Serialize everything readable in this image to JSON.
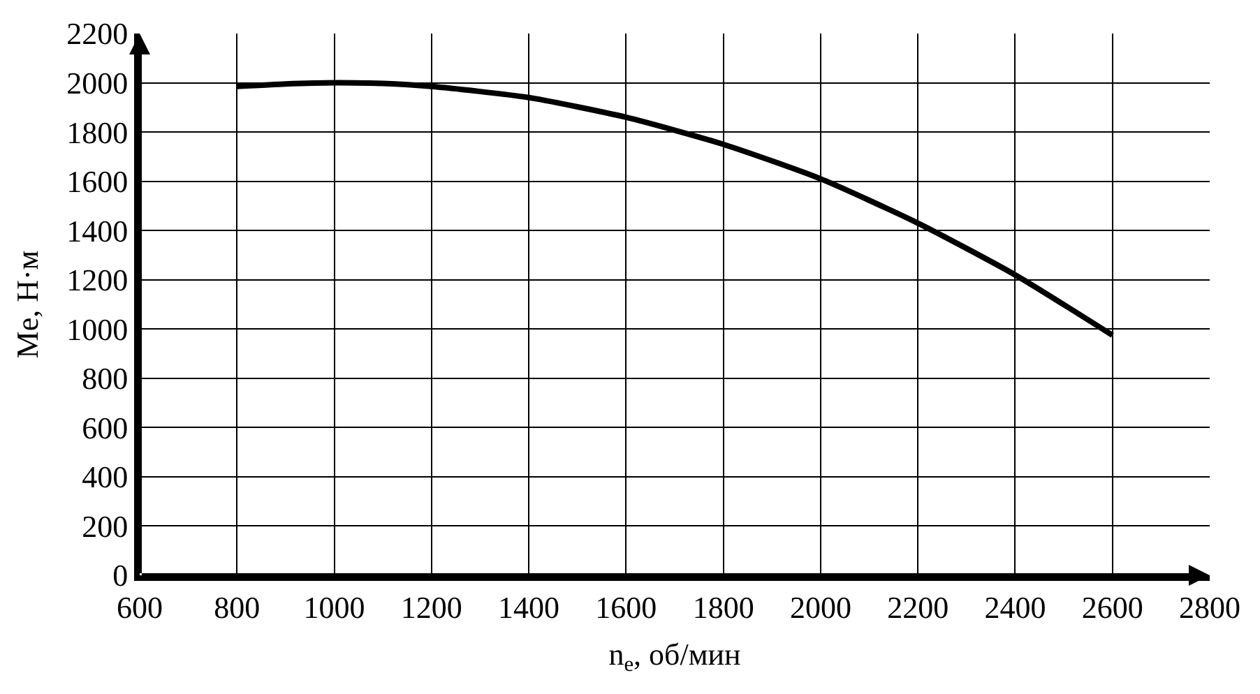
{
  "chart_data": {
    "type": "line",
    "xlabel": "n$_{e}$, об/мин",
    "ylabel": "Me, Н·м",
    "x": [
      800,
      900,
      1000,
      1100,
      1200,
      1400,
      1600,
      1800,
      2000,
      2200,
      2400,
      2600
    ],
    "series": [
      {
        "color": "#000000",
        "values": [
          1985,
          1995,
          2000,
          1997,
          1985,
          1940,
          1860,
          1750,
          1610,
          1430,
          1220,
          975
        ]
      }
    ],
    "xlim": [
      600,
      2800
    ],
    "xticks": [
      600,
      800,
      1000,
      1200,
      1400,
      1600,
      1800,
      2000,
      2200,
      2400,
      2600,
      2800
    ],
    "ylim": [
      0,
      2200
    ],
    "yticks": [
      0,
      200,
      400,
      600,
      800,
      1000,
      1200,
      1400,
      1600,
      1800,
      2000,
      2200
    ],
    "grid": true,
    "marker": "none",
    "line_style": "solid"
  }
}
